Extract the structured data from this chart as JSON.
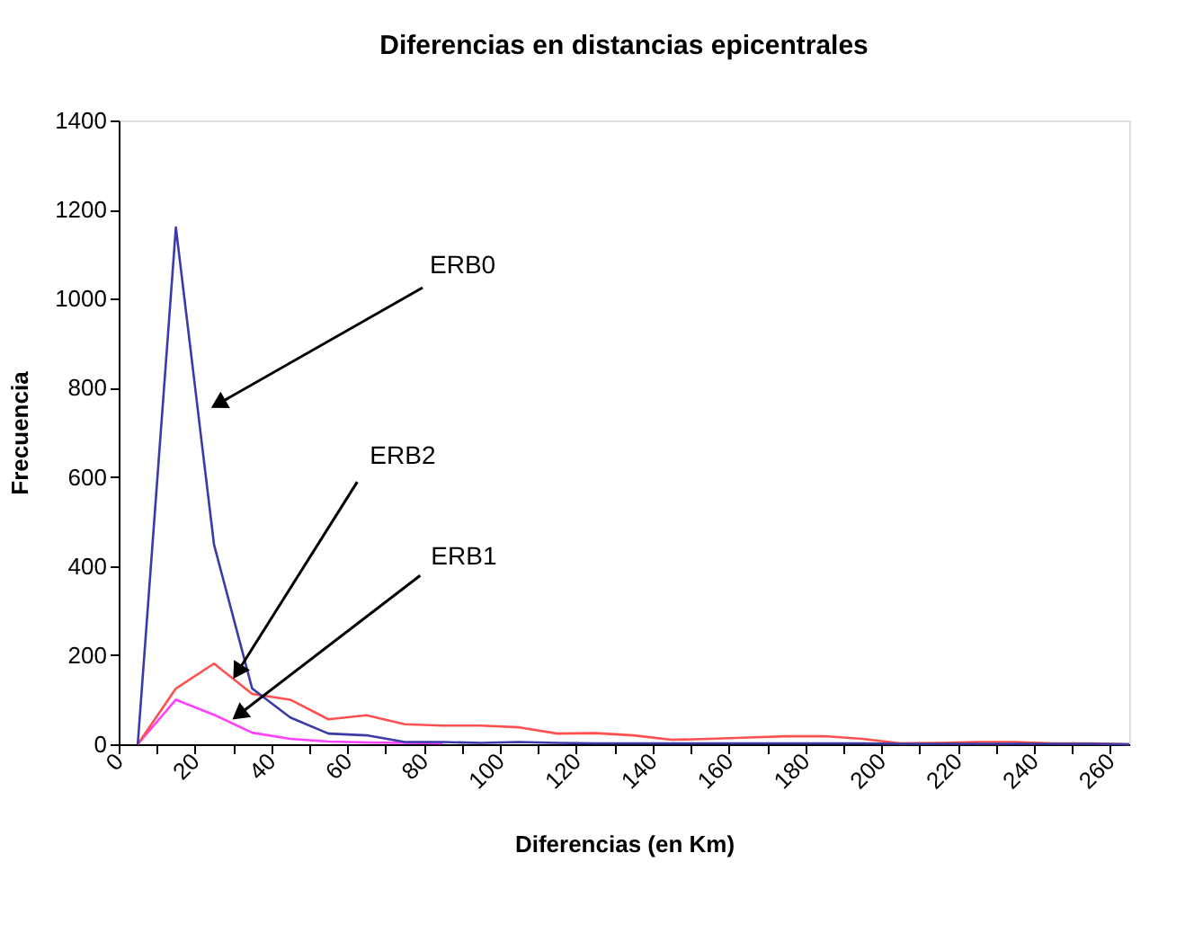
{
  "chart_data": {
    "type": "line",
    "title": "Diferencias en distancias epicentrales",
    "xlabel": "Diferencias (en Km)",
    "ylabel": "Frecuencia",
    "x": [
      5,
      15,
      25,
      35,
      45,
      55,
      65,
      75,
      85,
      95,
      105,
      115,
      125,
      135,
      145,
      155,
      165,
      175,
      185,
      195,
      205,
      215,
      225,
      235,
      245,
      255,
      265
    ],
    "series": [
      {
        "color": "#3a3aa8",
        "values": [
          0,
          1160,
          448,
          125,
          60,
          24,
          20,
          5,
          5,
          3,
          5,
          3,
          2,
          2,
          2,
          2,
          2,
          2,
          2,
          2,
          1,
          1,
          1,
          1,
          1,
          1,
          0
        ]
      },
      {
        "color": "#ff5050",
        "values": [
          0,
          125,
          181,
          113,
          100,
          56,
          65,
          45,
          42,
          42,
          38,
          24,
          25,
          20,
          10,
          12,
          15,
          18,
          18,
          12,
          2,
          3,
          5,
          5,
          2,
          2,
          0
        ]
      },
      {
        "color": "#ff40ff",
        "values": [
          0,
          100,
          66,
          26,
          12,
          6,
          4,
          3,
          2,
          null,
          null,
          null,
          null,
          null,
          null,
          null,
          null,
          null,
          null,
          null,
          null,
          null,
          null,
          null,
          null,
          null,
          null
        ]
      }
    ],
    "xlim": [
      0,
      265
    ],
    "ylim": [
      0,
      1400
    ],
    "xticks": [
      0,
      {
        "value": 10,
        "label": null
      },
      20,
      {
        "value": 30,
        "label": null
      },
      40,
      {
        "value": 50,
        "label": null
      },
      60,
      {
        "value": 70,
        "label": null
      },
      80,
      {
        "value": 90,
        "label": null
      },
      100,
      {
        "value": 110,
        "label": null
      },
      120,
      {
        "value": 130,
        "label": null
      },
      140,
      {
        "value": 150,
        "label": null
      },
      160,
      {
        "value": 170,
        "label": null
      },
      180,
      {
        "value": 190,
        "label": null
      },
      200,
      {
        "value": 210,
        "label": null
      },
      220,
      {
        "value": 230,
        "label": null
      },
      240,
      {
        "value": 250,
        "label": null
      },
      260
    ],
    "yticks": [
      0,
      200,
      400,
      600,
      800,
      1000,
      1200,
      1400
    ],
    "grid": false,
    "marker": "none",
    "line_style": "solid",
    "annotations": [
      "ERB0",
      {
        "text": "ERB2",
        "x": 30.5,
        "y": 153
      },
      {
        "text": "ERB1",
        "x": 30.5,
        "y": 60
      }
    ]
  }
}
